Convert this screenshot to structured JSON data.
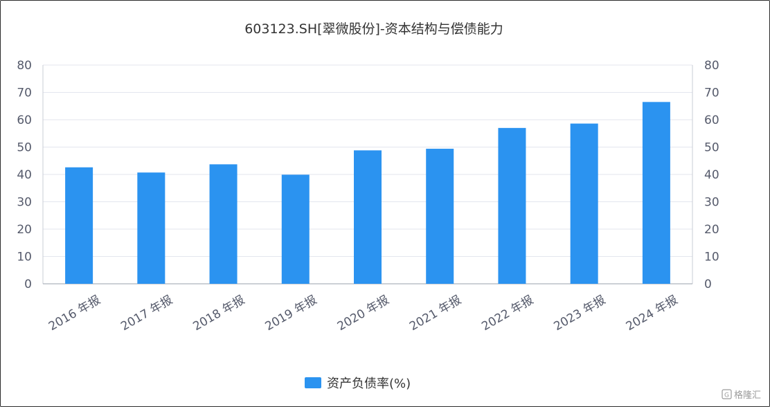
{
  "chart_data": {
    "type": "bar",
    "title": "603123.SH[翠微股份]-资本结构与偿债能力",
    "categories": [
      "2016 年报",
      "2017 年报",
      "2018 年报",
      "2019 年报",
      "2020 年报",
      "2021 年报",
      "2022 年报",
      "2023 年报",
      "2024 年报"
    ],
    "series": [
      {
        "name": "资产负债率(%)",
        "values": [
          42.6,
          40.7,
          43.7,
          39.9,
          48.8,
          49.4,
          57.0,
          58.6,
          66.5
        ]
      }
    ],
    "ylim": [
      0,
      80
    ],
    "yticks": [
      0,
      10,
      20,
      30,
      40,
      50,
      60,
      70,
      80
    ],
    "right_axis_ticks": [
      0,
      10,
      20,
      30,
      40,
      50,
      60,
      70,
      80
    ],
    "grid": true,
    "legend_position": "bottom-center",
    "bar_color": "#2b93f0"
  },
  "watermark": "格隆汇"
}
